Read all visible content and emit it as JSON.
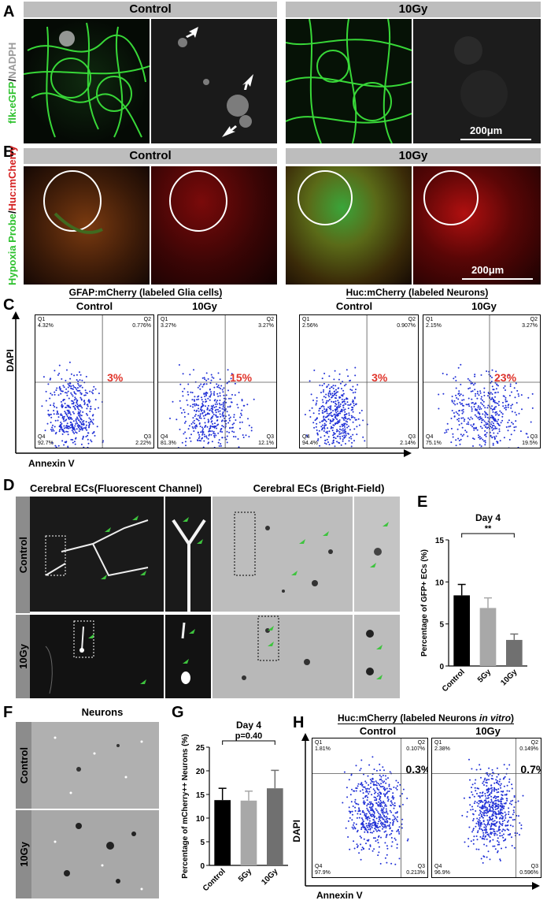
{
  "panels": {
    "A": "A",
    "B": "B",
    "C": "C",
    "D": "D",
    "E": "E",
    "F": "F",
    "G": "G",
    "H": "H"
  },
  "panelA": {
    "control": "Control",
    "irradiated": "10Gy",
    "ylabel_green": "flk:eGFP",
    "ylabel_sep": "/",
    "ylabel_grey": "NADPH",
    "scale": "200μm"
  },
  "panelB": {
    "control": "Control",
    "irradiated": "10Gy",
    "ylabel_green": "Hypoxia Probe",
    "ylabel_sep": "/",
    "ylabel_red": "Huc:mCherry",
    "scale": "200μm"
  },
  "panelC": {
    "glia_title": "GFAP:mCherry (labeled Glia cells)",
    "neuron_title": "Huc:mCherry (labeled Neurons)",
    "control": "Control",
    "irradiated": "10Gy",
    "ylabel": "DAPI",
    "xlabel": "Annexin V",
    "plots": [
      {
        "q1": "Q1",
        "q1v": "4.32%",
        "q2": "Q2",
        "q2v": "0.776%",
        "q3": "Q3",
        "q3v": "2.22%",
        "q4": "Q4",
        "q4v": "92.7%",
        "big": "3%"
      },
      {
        "q1": "Q1",
        "q1v": "3.27%",
        "q2": "Q2",
        "q2v": "3.27%",
        "q3": "Q3",
        "q3v": "12.1%",
        "q4": "Q4",
        "q4v": "81.3%",
        "big": "15%"
      },
      {
        "q1": "Q1",
        "q1v": "2.56%",
        "q2": "Q2",
        "q2v": "0.907%",
        "q3": "Q3",
        "q3v": "2.14%",
        "q4": "Q4",
        "q4v": "94.4%",
        "big": "3%"
      },
      {
        "q1": "Q1",
        "q1v": "2.15%",
        "q2": "Q2",
        "q2v": "3.27%",
        "q3": "Q3",
        "q3v": "19.5%",
        "q4": "Q4",
        "q4v": "75.1%",
        "big": "23%"
      }
    ]
  },
  "panelD": {
    "fluor_title": "Cerebral ECs(Fluorescent Channel)",
    "bf_title": "Cerebral ECs (Bright-Field)",
    "control": "Control",
    "irradiated": "10Gy"
  },
  "panelF": {
    "title": "Neurons",
    "control": "Control",
    "irradiated": "10Gy"
  },
  "panelH": {
    "title_a": "Huc:mCherry (labeled Neurons ",
    "title_b": "in vitro",
    ")": ")",
    "control": "Control",
    "irradiated": "10Gy",
    "ylabel": "DAPI",
    "xlabel": "Annexin V",
    "plots": [
      {
        "q1": "Q1",
        "q1v": "1.81%",
        "q2": "Q2",
        "q2v": "0.107%",
        "q3": "Q3",
        "q3v": "0.213%",
        "q4": "Q4",
        "q4v": "97.9%",
        "big": "0.3%"
      },
      {
        "q1": "Q1",
        "q1v": "2.38%",
        "q2": "Q2",
        "q2v": "0.149%",
        "q3": "Q3",
        "q3v": "0.596%",
        "q4": "Q4",
        "q4v": "96.9%",
        "big": "0.7%"
      }
    ]
  },
  "chart_data": [
    {
      "type": "bar",
      "title": "Day 4",
      "ylabel": "Percentage of GFP+ ECs (%)",
      "categories": [
        "Control",
        "5Gy",
        "10Gy"
      ],
      "values": [
        8.4,
        6.9,
        3.1
      ],
      "errors": [
        1.3,
        1.2,
        0.7
      ],
      "ylim": [
        0,
        15
      ],
      "yticks": [
        "0",
        "5",
        "10",
        "15"
      ],
      "significance": "**",
      "colors": [
        "#000000",
        "#a8a8a8",
        "#707070"
      ]
    },
    {
      "type": "bar",
      "title": "Day 4",
      "ylabel": "Percentage of mCherry++ Neurons (%)",
      "categories": [
        "Control",
        "5Gy",
        "10Gy"
      ],
      "values": [
        13.8,
        13.7,
        16.3
      ],
      "errors": [
        2.5,
        2.0,
        3.8
      ],
      "ylim": [
        0,
        25
      ],
      "yticks": [
        "0",
        "5",
        "10",
        "15",
        "20",
        "25"
      ],
      "significance": "p=0.40",
      "colors": [
        "#000000",
        "#a8a8a8",
        "#707070"
      ]
    }
  ]
}
